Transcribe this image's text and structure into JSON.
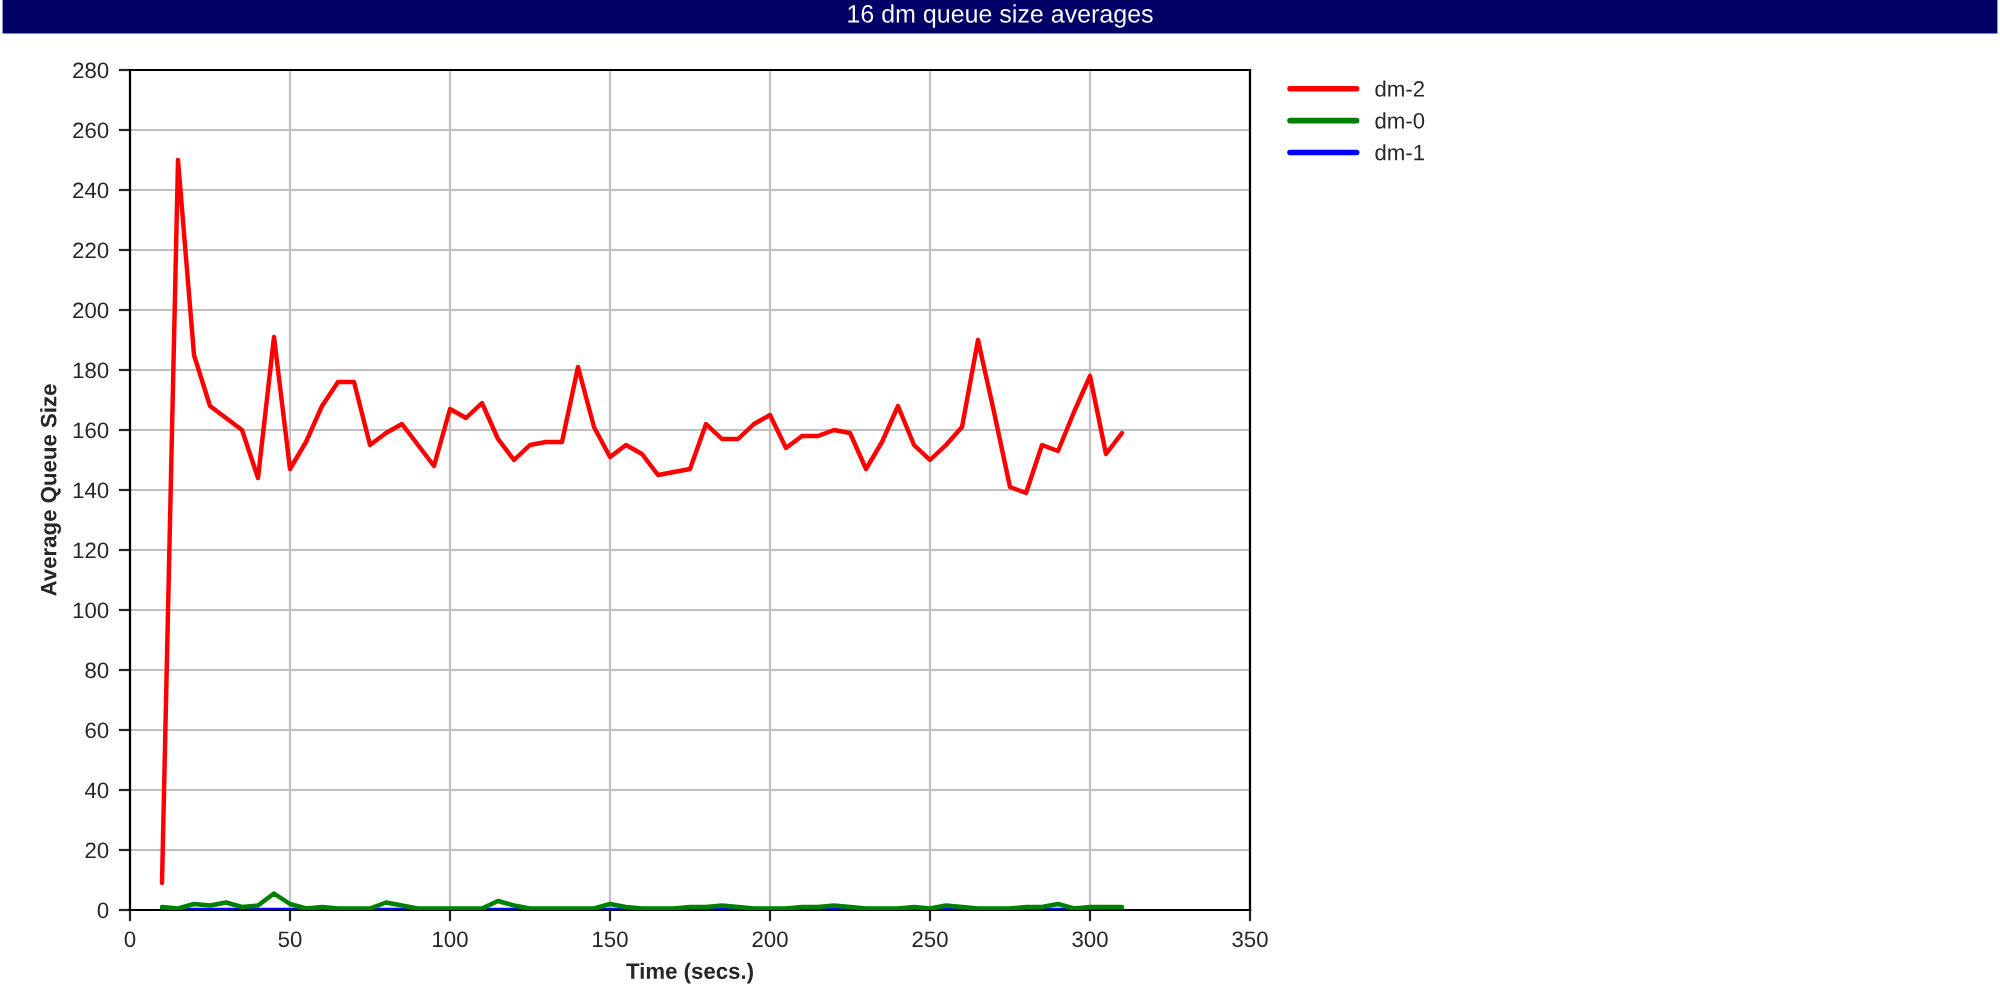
{
  "chart_data": {
    "type": "line",
    "title": "16 dm queue size averages",
    "xlabel": "Time (secs.)",
    "ylabel": "Average Queue Size",
    "x": [
      10,
      15,
      20,
      25,
      30,
      35,
      40,
      45,
      50,
      55,
      60,
      65,
      70,
      75,
      80,
      85,
      90,
      95,
      100,
      105,
      110,
      115,
      120,
      125,
      130,
      135,
      140,
      145,
      150,
      155,
      160,
      165,
      170,
      175,
      180,
      185,
      190,
      195,
      200,
      205,
      210,
      215,
      220,
      225,
      230,
      235,
      240,
      245,
      250,
      255,
      260,
      265,
      270,
      275,
      280,
      285,
      290,
      295,
      300,
      305,
      310
    ],
    "series": [
      {
        "name": "dm-2",
        "color": "#ff0000",
        "values": [
          9,
          250,
          185,
          168,
          164,
          160,
          144,
          191,
          147,
          156,
          168,
          176,
          176,
          155,
          159,
          162,
          155,
          148,
          167,
          164,
          169,
          157,
          150,
          155,
          156,
          156,
          181,
          161,
          151,
          155,
          152,
          145,
          146,
          147,
          162,
          157,
          157,
          162,
          165,
          154,
          158,
          158,
          160,
          159,
          147,
          156,
          168,
          155,
          150,
          155,
          161,
          190,
          166,
          141,
          139,
          155,
          153,
          166,
          178,
          152,
          159
        ]
      },
      {
        "name": "dm-0",
        "color": "#008000",
        "values": [
          1,
          0.5,
          2,
          1.5,
          2.5,
          1,
          1.5,
          5.5,
          2,
          0.5,
          1,
          0.5,
          0.5,
          0.5,
          2.5,
          1.5,
          0.5,
          0.5,
          0.5,
          0.5,
          0.5,
          3,
          1.5,
          0.5,
          0.5,
          0.5,
          0.5,
          0.5,
          2,
          1,
          0.5,
          0.5,
          0.5,
          1,
          1,
          1.5,
          1,
          0.5,
          0.5,
          0.5,
          1,
          1,
          1.5,
          1,
          0.5,
          0.5,
          0.5,
          1,
          0.5,
          1.5,
          1,
          0.5,
          0.5,
          0.5,
          1,
          1,
          2,
          0.5,
          1,
          1,
          1
        ]
      },
      {
        "name": "dm-1",
        "color": "#0000ff",
        "values": [
          0,
          0,
          0,
          0,
          0,
          0,
          0,
          0,
          0,
          0,
          0,
          0,
          0,
          0,
          0,
          0,
          0,
          0,
          0,
          0,
          0,
          0,
          0,
          0,
          0,
          0,
          0,
          0,
          0,
          0,
          0,
          0,
          0,
          0,
          0,
          0,
          0,
          0,
          0,
          0,
          0,
          0,
          0,
          0,
          0,
          0,
          0,
          0,
          0,
          0,
          0,
          0,
          0,
          0,
          0,
          0,
          0,
          0,
          0,
          0,
          0
        ]
      }
    ],
    "xlim": [
      0,
      350
    ],
    "xticks": [
      0,
      50,
      100,
      150,
      200,
      250,
      300,
      350
    ],
    "ylim": [
      0,
      280
    ],
    "yticks": [
      0,
      20,
      40,
      60,
      80,
      100,
      120,
      140,
      160,
      180,
      200,
      220,
      240,
      260,
      280
    ],
    "grid": true,
    "legend": "top right",
    "marker": "none",
    "line_style": "solid"
  }
}
